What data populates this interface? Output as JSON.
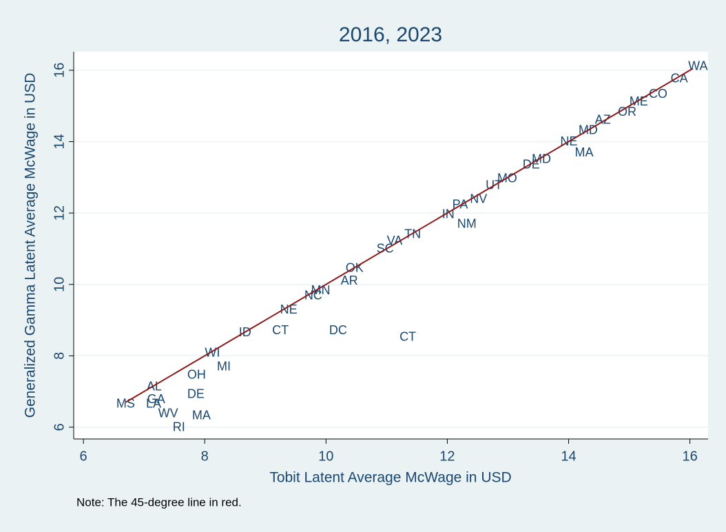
{
  "chart_data": {
    "type": "scatter",
    "title": "2016, 2023",
    "xlabel": "Tobit Latent Average McWage in USD",
    "ylabel": "Generalized Gamma Latent Average McWage in USD",
    "note": "Note: The 45-degree line in red.",
    "xlim": [
      5.84,
      16.3
    ],
    "ylim": [
      5.67,
      16.52
    ],
    "xticks": [
      6,
      8,
      10,
      12,
      14,
      16
    ],
    "yticks": [
      6,
      8,
      10,
      12,
      14,
      16
    ],
    "grid": true,
    "series": [
      {
        "color": "#1a476f",
        "labels": [
          "WA",
          "CA",
          "CO",
          "ME",
          "OR",
          "AZ",
          "MD",
          "MA",
          "NE",
          "MD",
          "DE",
          "MO",
          "UT",
          "NV",
          "PA",
          "IN",
          "NM",
          "TN",
          "VA",
          "SC",
          "OK",
          "AR",
          "MN",
          "NC",
          "NE",
          "ID",
          "CT",
          "DC",
          "CT",
          "MI",
          "DE",
          "MA",
          "RI",
          "WV",
          "LA",
          "MS",
          "GA",
          "AL",
          "WI",
          "OH"
        ],
        "x": [
          15.95,
          15.66,
          15.3,
          14.98,
          14.79,
          14.41,
          14.14,
          14.08,
          13.84,
          13.37,
          13.22,
          12.8,
          12.61,
          12.35,
          12.06,
          11.89,
          12.14,
          11.27,
          10.98,
          10.81,
          10.3,
          10.22,
          9.73,
          9.62,
          9.22,
          8.54,
          9.09,
          10.03,
          11.19,
          8.18,
          7.69,
          7.77,
          7.45,
          7.21,
          7.01,
          6.52,
          7.03,
          7.02,
          7.98,
          7.69
        ],
        "y": [
          16.1,
          15.75,
          15.32,
          15.11,
          14.82,
          14.59,
          14.3,
          13.68,
          13.99,
          13.49,
          13.34,
          12.95,
          12.76,
          12.37,
          12.22,
          11.95,
          11.68,
          11.39,
          11.21,
          10.98,
          10.44,
          10.09,
          9.82,
          9.67,
          9.28,
          8.64,
          8.7,
          8.7,
          8.51,
          7.68,
          6.91,
          6.31,
          5.98,
          6.37,
          6.64,
          6.64,
          6.77,
          7.12,
          8.07,
          7.45
        ]
      }
    ],
    "reference_line": {
      "color": "#8b1a1a",
      "x": [
        6.7,
        16.05
      ],
      "y": [
        6.7,
        16.05
      ]
    }
  }
}
